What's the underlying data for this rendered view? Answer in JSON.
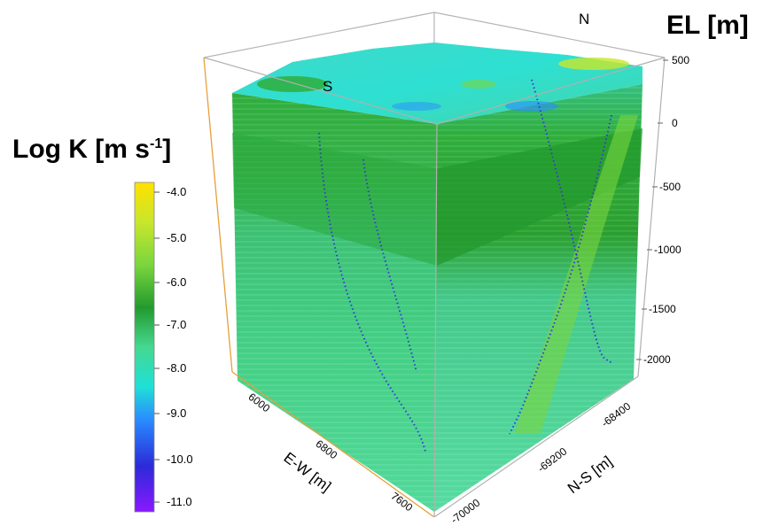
{
  "title": {
    "colorbar": "Log K [m s",
    "colorbar_sup": "-1",
    "colorbar_close": "]",
    "elevation": "EL [m]"
  },
  "compass": {
    "north": "N",
    "south": "S"
  },
  "colorbar_ticks": [
    "-4.0",
    "-5.0",
    "-6.0",
    "-7.0",
    "-8.0",
    "-9.0",
    "-10.0",
    "-11.0"
  ],
  "colorbar_colors": [
    "#ffe100",
    "#c9e62c",
    "#7ad63e",
    "#3fb34a",
    "#45d890",
    "#1fe0d6",
    "#2a8cff",
    "#2b2bd8",
    "#8a18ff"
  ],
  "elevation_ticks": [
    "500",
    "0",
    "-500",
    "-1000",
    "-1500",
    "-2000"
  ],
  "ew_axis": {
    "label": "E-W [m]",
    "ticks": [
      "6000",
      "6800",
      "7600"
    ]
  },
  "ns_axis": {
    "label": "N-S [m]",
    "ticks": [
      "-68400",
      "-69200",
      "-70000"
    ]
  }
}
